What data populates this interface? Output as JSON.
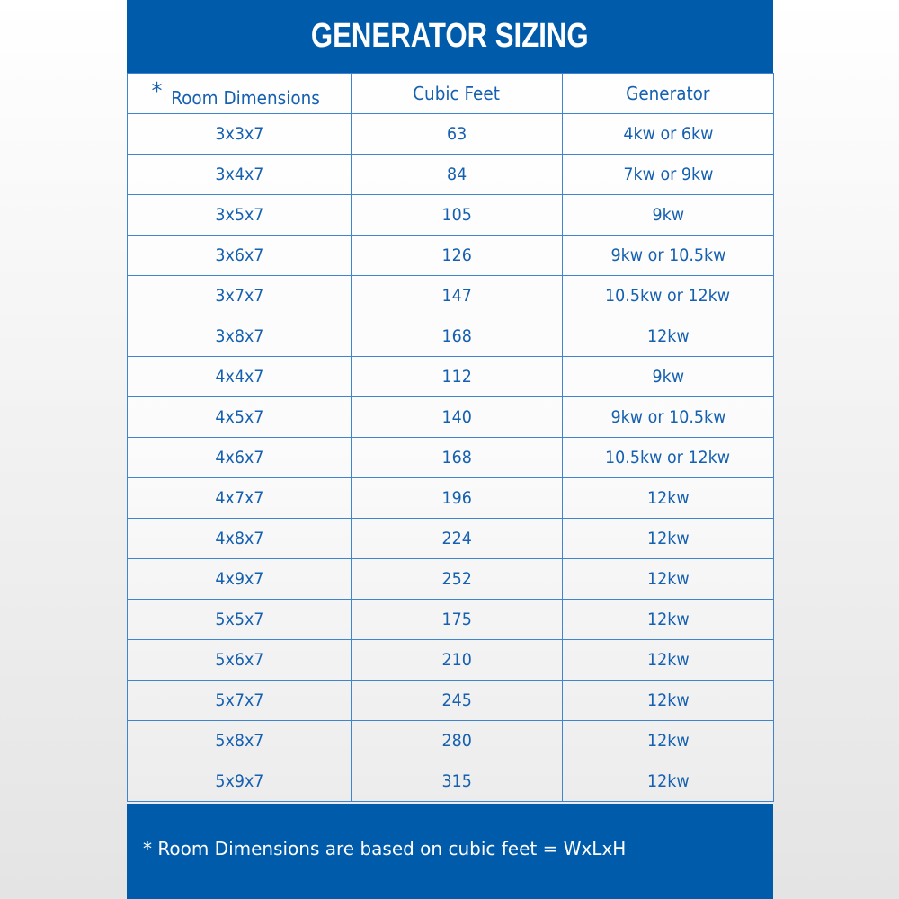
{
  "title": "GENERATOR SIZING",
  "colors": {
    "brand_blue": "#005baa",
    "text_blue": "#1560b0"
  },
  "table": {
    "header_marker": "*",
    "columns": [
      "Room Dimensions",
      "Cubic Feet",
      "Generator"
    ],
    "rows": [
      [
        "3x3x7",
        "63",
        "4kw or 6kw"
      ],
      [
        "3x4x7",
        "84",
        "7kw or 9kw"
      ],
      [
        "3x5x7",
        "105",
        "9kw"
      ],
      [
        "3x6x7",
        "126",
        "9kw or 10.5kw"
      ],
      [
        "3x7x7",
        "147",
        "10.5kw or 12kw"
      ],
      [
        "3x8x7",
        "168",
        "12kw"
      ],
      [
        "4x4x7",
        "112",
        "9kw"
      ],
      [
        "4x5x7",
        "140",
        "9kw or 10.5kw"
      ],
      [
        "4x6x7",
        "168",
        "10.5kw or 12kw"
      ],
      [
        "4x7x7",
        "196",
        "12kw"
      ],
      [
        "4x8x7",
        "224",
        "12kw"
      ],
      [
        "4x9x7",
        "252",
        "12kw"
      ],
      [
        "5x5x7",
        "175",
        "12kw"
      ],
      [
        "5x6x7",
        "210",
        "12kw"
      ],
      [
        "5x7x7",
        "245",
        "12kw"
      ],
      [
        "5x8x7",
        "280",
        "12kw"
      ],
      [
        "5x9x7",
        "315",
        "12kw"
      ]
    ]
  },
  "footer": {
    "note": "* Room Dimensions are based on cubic feet = WxLxH"
  }
}
